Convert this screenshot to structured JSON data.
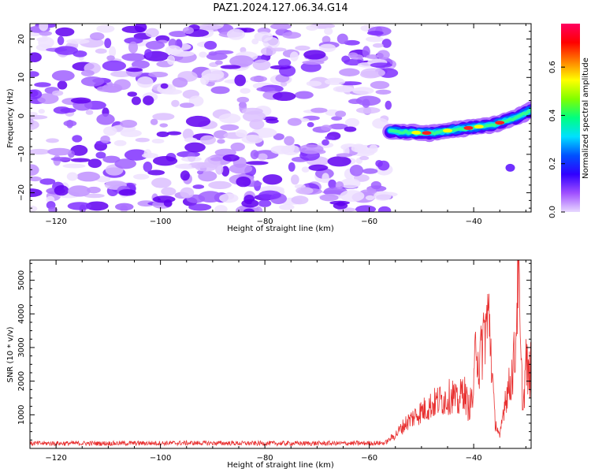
{
  "title": "PAZ1.2024.127.06.34.G14",
  "chart_data": [
    {
      "type": "heatmap",
      "xlabel": "Height of straight line (km)",
      "ylabel": "Frequency (Hz)",
      "xlim": [
        -125,
        -29
      ],
      "ylim": [
        -25,
        24
      ],
      "xticks": [
        -120,
        -100,
        -80,
        -60,
        -40
      ],
      "yticks": [
        -20,
        -10,
        0,
        10,
        20
      ],
      "noise_region_x": [
        -125,
        -56
      ],
      "signal_ridge": {
        "x": [
          -56,
          -52,
          -48,
          -44,
          -40,
          -36,
          -32,
          -29
        ],
        "frequency": [
          -4,
          -4.3,
          -4.5,
          -3.6,
          -3,
          -2.2,
          -0.5,
          1.5
        ]
      },
      "colorbar": {
        "label": "Normalized spectral amplitude",
        "ticks": [
          0.0,
          0.2,
          0.4,
          0.6
        ],
        "range": [
          0.0,
          0.78
        ],
        "colors": [
          "#e8d8ff",
          "#a050ff",
          "#3000ff",
          "#0050ff",
          "#00e0ff",
          "#00ff80",
          "#80ff00",
          "#ffff00",
          "#ff8000",
          "#ff0000",
          "#ff0060"
        ]
      }
    },
    {
      "type": "line",
      "xlabel": "Height of straight line (km)",
      "ylabel": "SNR (10 * v/v)",
      "xlim": [
        -125,
        -29
      ],
      "ylim": [
        0,
        5600
      ],
      "xticks": [
        -120,
        -100,
        -80,
        -60,
        -40
      ],
      "yticks": [
        1000,
        2000,
        3000,
        4000,
        5000
      ],
      "line_color": "#e83030",
      "series": [
        {
          "x": [
            -125,
            -110,
            -95,
            -80,
            -65,
            -57,
            -55,
            -53,
            -51,
            -49,
            -47,
            -45,
            -44,
            -43,
            -42,
            -41,
            -40,
            -39.5,
            -39,
            -38,
            -37,
            -36,
            -35,
            -34,
            -33,
            -32,
            -31.5,
            -31,
            -30.5,
            -30,
            -29.5,
            -29
          ],
          "values": [
            150,
            150,
            160,
            150,
            150,
            160,
            400,
            750,
            1000,
            1200,
            1400,
            1500,
            1600,
            1300,
            1800,
            1200,
            1600,
            3600,
            2300,
            3500,
            3900,
            900,
            300,
            1500,
            1900,
            2900,
            5600,
            2600,
            1200,
            2600,
            2100,
            2400
          ]
        }
      ]
    }
  ]
}
